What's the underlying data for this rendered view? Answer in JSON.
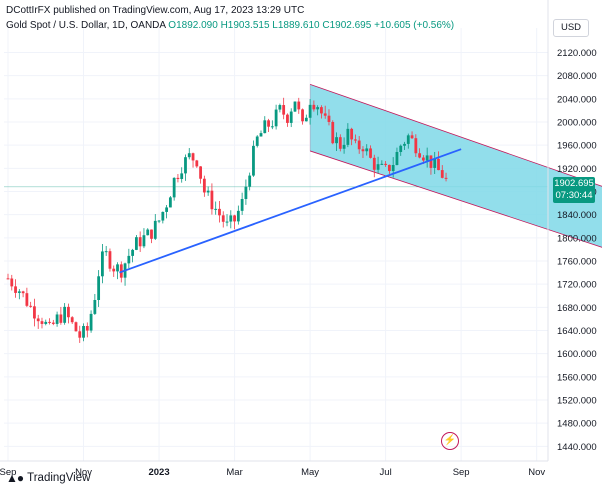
{
  "header": {
    "published": "DCottIrFX published on TradingView.com, Aug 17, 2023 13:29 UTC"
  },
  "title": {
    "symbol": "Gold Spot / U.S. Dollar, 1D, OANDA",
    "open": "O1892.090",
    "high": "H1903.515",
    "low": "L1889.610",
    "close": "C1902.695",
    "change": "+10.605 (+0.56%)"
  },
  "currency": "USD",
  "last_price": {
    "price": "1902.695",
    "countdown": "07:30:44"
  },
  "footer": {
    "brand": "TradingView"
  },
  "colors": {
    "up": "#089981",
    "down": "#f23645",
    "trendline": "#2962ff",
    "channel_fill": "#7fd8e8",
    "channel_border": "#c2185b"
  },
  "chart_data": {
    "type": "candlestick",
    "y_ticks": [
      1440,
      1480,
      1520,
      1560,
      1600,
      1640,
      1680,
      1720,
      1760,
      1800,
      1840,
      1880,
      1920,
      1960,
      2000,
      2040,
      2080,
      2120
    ],
    "y_tick_labels": [
      "1440.000",
      "1480.000",
      "1520.000",
      "1560.000",
      "1600.000",
      "1640.000",
      "1680.000",
      "1720.000",
      "1760.000",
      "1800.000",
      "1840.000",
      "1880.000",
      "1920.000",
      "1960.000",
      "2000.000",
      "2040.000",
      "2080.000",
      "2120.000"
    ],
    "ylim": [
      1425,
      2145
    ],
    "x_ticks": [
      "Sep",
      "Nov",
      "2023",
      "Mar",
      "May",
      "Jul",
      "Sep",
      "Nov"
    ],
    "x_tick_months": [
      0,
      2,
      4,
      6,
      8,
      10,
      12,
      14
    ],
    "xlim_months": [
      0,
      14.3
    ],
    "bold_x_tick": "2023",
    "last_price": 1902.695,
    "closes_monthly": [
      [
        0.0,
        1730
      ],
      [
        0.3,
        1710
      ],
      [
        0.6,
        1680
      ],
      [
        0.9,
        1660
      ],
      [
        1.1,
        1640
      ],
      [
        1.3,
        1660
      ],
      [
        1.5,
        1670
      ],
      [
        1.7,
        1650
      ],
      [
        1.9,
        1630
      ],
      [
        2.1,
        1640
      ],
      [
        2.3,
        1700
      ],
      [
        2.45,
        1760
      ],
      [
        2.6,
        1770
      ],
      [
        2.8,
        1750
      ],
      [
        3.0,
        1745
      ],
      [
        3.2,
        1770
      ],
      [
        3.4,
        1790
      ],
      [
        3.6,
        1800
      ],
      [
        3.8,
        1810
      ],
      [
        4.0,
        1830
      ],
      [
        4.2,
        1860
      ],
      [
        4.4,
        1900
      ],
      [
        4.6,
        1925
      ],
      [
        4.8,
        1940
      ],
      [
        5.0,
        1935
      ],
      [
        5.2,
        1880
      ],
      [
        5.4,
        1860
      ],
      [
        5.6,
        1840
      ],
      [
        5.8,
        1820
      ],
      [
        6.0,
        1830
      ],
      [
        6.2,
        1860
      ],
      [
        6.4,
        1920
      ],
      [
        6.6,
        1970
      ],
      [
        6.8,
        1990
      ],
      [
        7.0,
        2000
      ],
      [
        7.2,
        2020
      ],
      [
        7.4,
        2010
      ],
      [
        7.6,
        2040
      ],
      [
        7.8,
        1990
      ],
      [
        8.0,
        2040
      ],
      [
        8.2,
        2030
      ],
      [
        8.4,
        2000
      ],
      [
        8.6,
        1975
      ],
      [
        8.8,
        1960
      ],
      [
        9.0,
        1980
      ],
      [
        9.2,
        1955
      ],
      [
        9.4,
        1960
      ],
      [
        9.6,
        1935
      ],
      [
        9.8,
        1920
      ],
      [
        10.0,
        1915
      ],
      [
        10.2,
        1930
      ],
      [
        10.4,
        1960
      ],
      [
        10.6,
        1975
      ],
      [
        10.8,
        1960
      ],
      [
        11.0,
        1945
      ],
      [
        11.2,
        1930
      ],
      [
        11.4,
        1915
      ],
      [
        11.6,
        1902.695
      ]
    ],
    "trendline": {
      "start": [
        2.95,
        1740
      ],
      "end": [
        12.0,
        1953
      ]
    },
    "channel": {
      "upper": {
        "start": [
          8.0,
          2065
        ],
        "end": [
          15.9,
          1885
        ]
      },
      "lower": {
        "start": [
          8.0,
          1950
        ],
        "end": [
          15.9,
          1780
        ]
      }
    },
    "horizontal_line": 1888
  }
}
